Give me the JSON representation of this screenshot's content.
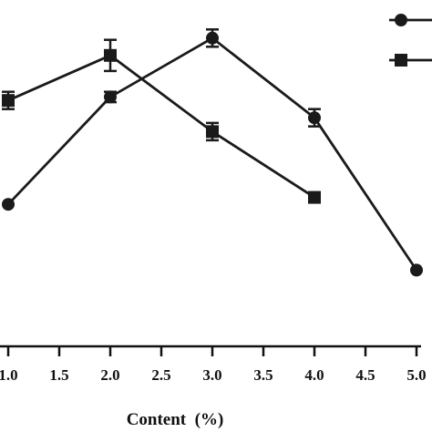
{
  "chart_data": {
    "type": "line",
    "xlabel": "Content  (%)",
    "ylabel": "",
    "x_ticks": [
      "1.0",
      "1.5",
      "2.0",
      "2.5",
      "3.0",
      "3.5",
      "4.0",
      "4.5",
      "5.0"
    ],
    "xlim": [
      1.0,
      5.0
    ],
    "ylim": [
      0,
      100
    ],
    "grid": false,
    "legend": "top-right",
    "series": [
      {
        "marker": "circle",
        "color": "#1a1a1a",
        "x": [
          1.0,
          2.0,
          3.0,
          4.0,
          5.0
        ],
        "y": [
          41,
          72,
          89,
          66,
          22
        ],
        "err": [
          0,
          1.5,
          2.5,
          2.5,
          0
        ]
      },
      {
        "marker": "square",
        "color": "#1a1a1a",
        "x": [
          1.0,
          2.0,
          3.0,
          4.0
        ],
        "y": [
          71,
          84,
          62,
          43
        ],
        "err": [
          2.5,
          4.5,
          2.5,
          0
        ]
      }
    ]
  }
}
